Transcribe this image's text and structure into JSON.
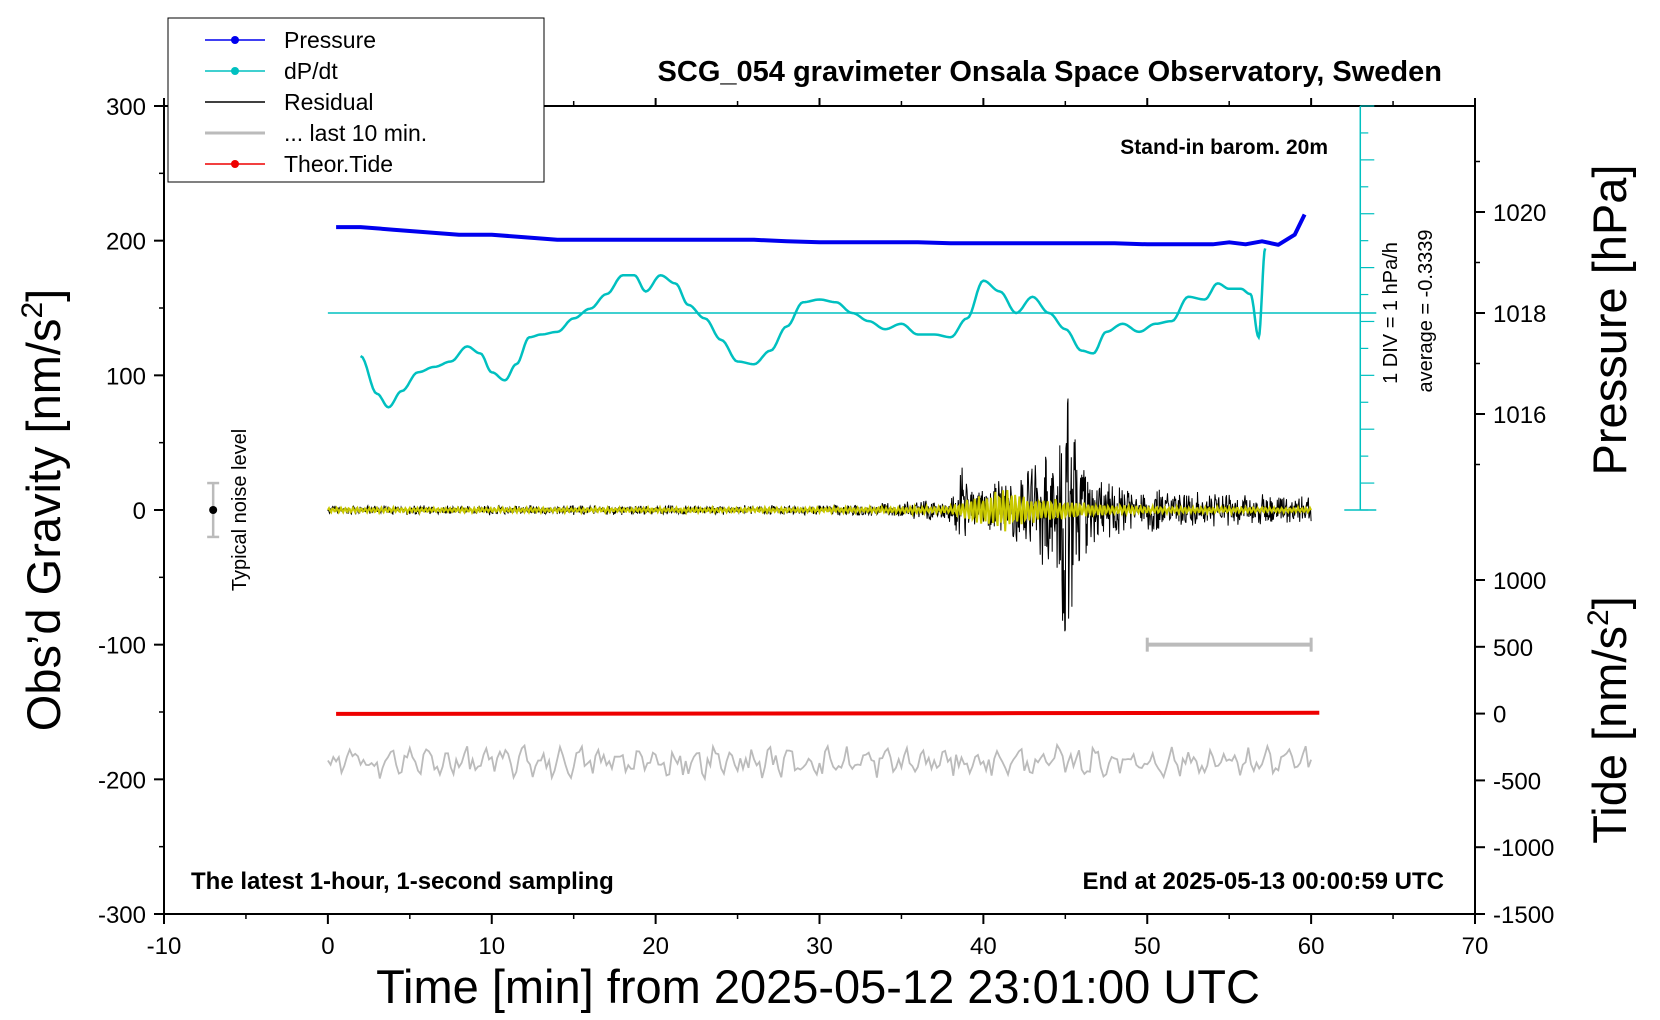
{
  "chart_data": {
    "type": "line",
    "title": "SCG_054 gravimeter Onsala Space Observatory, Sweden",
    "xlabel": "Time [min] from 2025-05-12 23:01:00 UTC",
    "ylabel_left": "Obs’d Gravity [nm/s",
    "ylabel_left_sup": "2",
    "ylabel_left_end": "]",
    "ylabel_right_pressure": "Pressure [hPa]",
    "ylabel_right_tide": "Tide [nm/s",
    "ylabel_right_tide_sup": "2",
    "ylabel_right_tide_end": "]",
    "xlim": [
      -10,
      70
    ],
    "ylim_gravity": [
      -300,
      300
    ],
    "pressure_ticks": [
      "1020",
      "1018",
      "1016"
    ],
    "tide_ticks": [
      "1000",
      "500",
      "0",
      "-500",
      "-1000",
      "-1500"
    ],
    "x_ticks": [
      "-10",
      "0",
      "10",
      "20",
      "30",
      "40",
      "50",
      "60",
      "70"
    ],
    "y_ticks": [
      "300",
      "200",
      "100",
      "0",
      "-100",
      "-200",
      "-300"
    ],
    "annotations": {
      "barometer": "Stand-in barom. 20m",
      "div_scale": "1 DIV = 1 hPa/h",
      "average": "average = -0.3339",
      "noise": "Typical noise level",
      "bottom_left": "The latest 1-hour, 1-second sampling",
      "bottom_right": "End at 2025-05-13 00:00:59 UTC"
    },
    "legend": {
      "placement": "top-left",
      "entries": [
        {
          "label": "Pressure",
          "color": "#0000ee",
          "marker": true
        },
        {
          "label": "dP/dt",
          "color": "#00c0c0",
          "marker": true
        },
        {
          "label": "Residual",
          "color": "#000000",
          "marker": false
        },
        {
          "label": "... last 10 min.",
          "color": "#bbbbbb",
          "marker": false
        },
        {
          "label": "Theor.Tide",
          "color": "#ee0000",
          "marker": true
        }
      ]
    },
    "series": [
      {
        "name": "Pressure",
        "color": "#0000ee",
        "x": [
          0.5,
          2,
          4,
          6,
          8,
          10,
          12,
          14,
          16,
          18,
          20,
          22,
          24,
          26,
          28,
          30,
          32,
          34,
          36,
          38,
          40,
          42,
          44,
          46,
          48,
          50,
          52,
          54,
          55,
          56,
          57,
          58,
          59,
          59.6
        ],
        "y": [
          1019.7,
          1019.7,
          1019.65,
          1019.6,
          1019.55,
          1019.55,
          1019.5,
          1019.45,
          1019.45,
          1019.45,
          1019.45,
          1019.45,
          1019.45,
          1019.45,
          1019.42,
          1019.4,
          1019.4,
          1019.4,
          1019.4,
          1019.38,
          1019.38,
          1019.38,
          1019.38,
          1019.38,
          1019.38,
          1019.36,
          1019.36,
          1019.36,
          1019.4,
          1019.36,
          1019.42,
          1019.35,
          1019.55,
          1019.95
        ]
      },
      {
        "name": "dP/dt",
        "color": "#00c0c0",
        "baseline_pressure": 1018,
        "x": [
          2,
          3,
          3.7,
          4.5,
          5.5,
          6.5,
          7.5,
          8.5,
          9.3,
          10,
          10.8,
          11.5,
          12.3,
          13,
          14,
          15,
          16,
          17,
          18,
          18.7,
          19.4,
          20.3,
          21.2,
          22,
          23,
          24,
          25,
          26,
          27,
          28,
          29,
          30,
          31,
          32,
          33,
          34,
          35,
          36,
          37,
          38,
          39,
          40,
          41,
          42,
          43,
          44,
          45,
          46,
          46.7,
          47.5,
          48.5,
          49.5,
          50.5,
          51.5,
          52.5,
          53.5,
          54.3,
          55,
          55.7,
          56.3,
          56.8,
          57.2
        ],
        "y": [
          -0.8,
          -1.5,
          -1.75,
          -1.45,
          -1.1,
          -1.0,
          -0.9,
          -0.62,
          -0.75,
          -1.1,
          -1.25,
          -0.95,
          -0.45,
          -0.4,
          -0.35,
          -0.1,
          0.08,
          0.35,
          0.7,
          0.7,
          0.4,
          0.7,
          0.55,
          0.15,
          -0.1,
          -0.5,
          -0.9,
          -0.95,
          -0.7,
          -0.25,
          0.2,
          0.25,
          0.2,
          0.0,
          -0.15,
          -0.3,
          -0.2,
          -0.4,
          -0.4,
          -0.45,
          -0.1,
          0.6,
          0.4,
          0.0,
          0.3,
          0.0,
          -0.3,
          -0.7,
          -0.75,
          -0.35,
          -0.2,
          -0.35,
          -0.2,
          -0.15,
          0.3,
          0.25,
          0.55,
          0.45,
          0.45,
          0.35,
          -0.45,
          1.2
        ]
      },
      {
        "name": "Residual",
        "color": "#000000",
        "x_start": 0,
        "x_end": 60,
        "envelope": {
          "x": [
            0,
            30,
            34,
            38,
            38.5,
            38.7,
            39,
            40,
            41,
            42,
            43,
            44,
            44.5,
            44.8,
            45,
            45.3,
            45.6,
            46,
            47,
            48,
            50,
            55,
            60
          ],
          "amp": [
            4,
            4,
            6,
            10,
            25,
            45,
            18,
            20,
            25,
            28,
            35,
            55,
            75,
            100,
            125,
            85,
            75,
            55,
            35,
            25,
            18,
            14,
            12
          ]
        }
      },
      {
        "name": "Residual filtered",
        "color": "#c8c800",
        "x_start": 0,
        "x_end": 60,
        "envelope": {
          "x": [
            0,
            30,
            38,
            39,
            40,
            41,
            42,
            43,
            44,
            45,
            46,
            48,
            50,
            60
          ],
          "amp": [
            2,
            2,
            3,
            8,
            12,
            18,
            14,
            10,
            9,
            8,
            6,
            4,
            3,
            2
          ]
        }
      },
      {
        "name": "... last 10 min.",
        "color": "#bbbbbb",
        "offset": -187,
        "x_start": 0,
        "x_end": 60,
        "amp": 9
      },
      {
        "name": "Theor.Tide",
        "color": "#ee0000",
        "x": [
          0.5,
          20,
          40,
          60.5
        ],
        "y": [
          -2,
          0,
          3,
          6
        ]
      }
    ],
    "noise_bar": {
      "x": -7,
      "y_low": -20,
      "y_high": 20,
      "center": 0
    },
    "ten_min_bar": {
      "x_start": 50,
      "x_end": 60,
      "y": -100
    }
  },
  "colors": {
    "pressure": "#0000ee",
    "dpdt": "#00c0c0",
    "residual": "#000000",
    "filtered": "#c8c800",
    "last10": "#bbbbbb",
    "tide": "#ee0000"
  }
}
